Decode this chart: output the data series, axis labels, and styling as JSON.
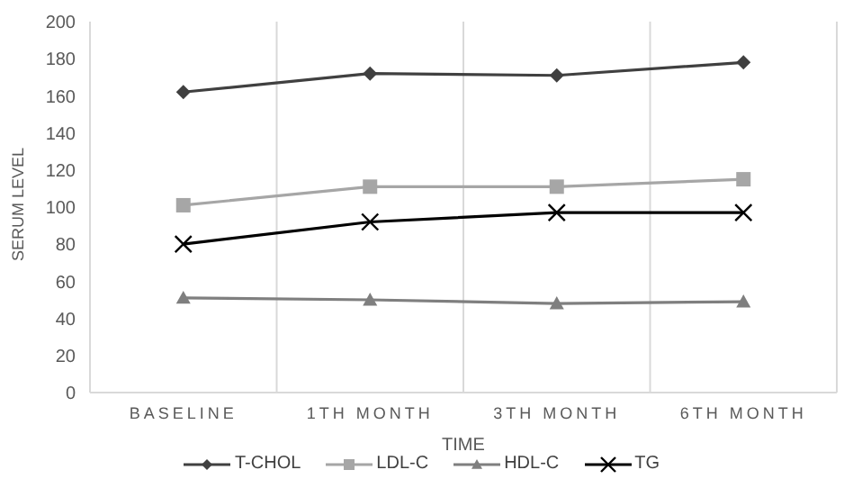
{
  "chart_data": {
    "type": "line",
    "xlabel": "TIME",
    "ylabel": "SERUM LEVEL",
    "categories": [
      "BASELINE",
      "1TH MONTH",
      "3TH MONTH",
      "6TH MONTH"
    ],
    "series": [
      {
        "name": "T-CHOL",
        "color": "#404040",
        "marker": "diamond",
        "values": [
          162,
          172,
          171,
          178
        ]
      },
      {
        "name": "LDL-C",
        "color": "#a6a6a6",
        "marker": "square",
        "values": [
          101,
          111,
          111,
          115
        ]
      },
      {
        "name": "HDL-C",
        "color": "#7f7f7f",
        "marker": "triangle",
        "values": [
          51,
          50,
          48,
          49
        ]
      },
      {
        "name": "TG",
        "color": "#000000",
        "marker": "cross",
        "values": [
          80,
          92,
          97,
          97
        ]
      }
    ],
    "ylim": [
      0,
      200
    ],
    "yticks": [
      0,
      20,
      40,
      60,
      80,
      100,
      120,
      140,
      160,
      180,
      200
    ],
    "grid": "x",
    "legend": "bottom"
  }
}
